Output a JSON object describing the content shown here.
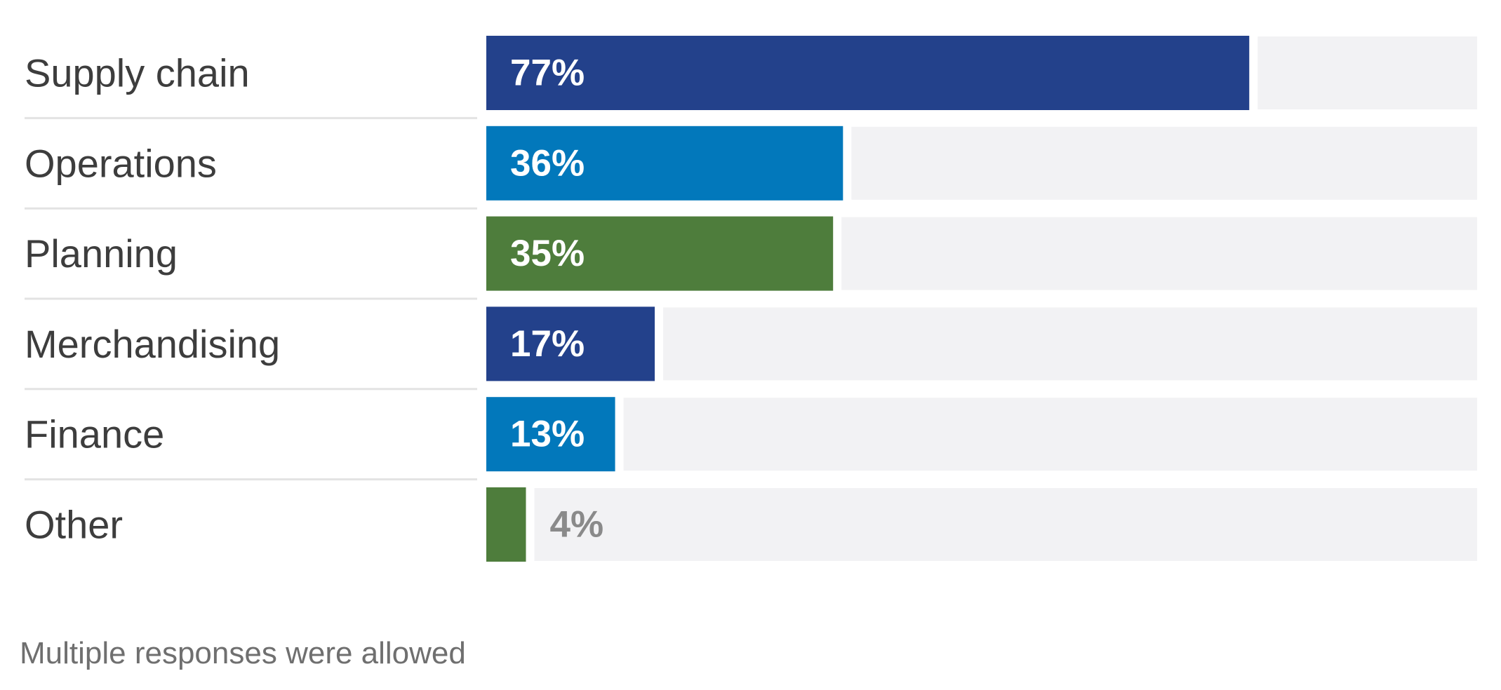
{
  "chart_data": {
    "type": "bar",
    "orientation": "horizontal",
    "categories": [
      "Supply chain",
      "Operations",
      "Planning",
      "Merchandising",
      "Finance",
      "Other"
    ],
    "values": [
      77,
      36,
      35,
      17,
      13,
      4
    ],
    "value_labels": [
      "77%",
      "36%",
      "35%",
      "17%",
      "13%",
      "4%"
    ],
    "bar_colors": [
      "#23418b",
      "#0278bb",
      "#4e7d3c",
      "#23418b",
      "#0278bb",
      "#4e7d3c"
    ],
    "track_color": "#f2f2f4",
    "inside_label_color": "#ffffff",
    "outside_label_color": "#8a8a8a",
    "xlim": [
      0,
      100
    ],
    "grid": false,
    "legend": "none"
  },
  "footnote": "Multiple responses were allowed"
}
